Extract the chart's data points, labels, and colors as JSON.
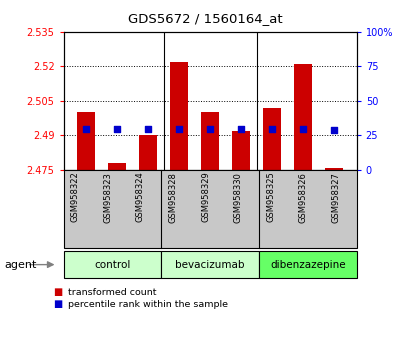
{
  "title": "GDS5672 / 1560164_at",
  "samples": [
    "GSM958322",
    "GSM958323",
    "GSM958324",
    "GSM958328",
    "GSM958329",
    "GSM958330",
    "GSM958325",
    "GSM958326",
    "GSM958327"
  ],
  "red_values": [
    2.5,
    2.478,
    2.49,
    2.522,
    2.5,
    2.492,
    2.502,
    2.521,
    2.476
  ],
  "blue_values": [
    30,
    30,
    30,
    30,
    30,
    30,
    30,
    30,
    29
  ],
  "bar_bottom": 2.475,
  "ylim_left": [
    2.475,
    2.535
  ],
  "ylim_right": [
    0,
    100
  ],
  "yticks_left": [
    2.475,
    2.49,
    2.505,
    2.52,
    2.535
  ],
  "yticks_right": [
    0,
    25,
    50,
    75,
    100
  ],
  "ytick_labels_left": [
    "2.475",
    "2.49",
    "2.505",
    "2.52",
    "2.535"
  ],
  "ytick_labels_right": [
    "0",
    "25",
    "50",
    "75",
    "100%"
  ],
  "groups": [
    {
      "label": "control",
      "indices": [
        0,
        1,
        2
      ],
      "color": "#ccffcc"
    },
    {
      "label": "bevacizumab",
      "indices": [
        3,
        4,
        5
      ],
      "color": "#ccffcc"
    },
    {
      "label": "dibenzazepine",
      "indices": [
        6,
        7,
        8
      ],
      "color": "#66ff66"
    }
  ],
  "bar_color": "#cc0000",
  "blue_color": "#0000cc",
  "bar_width": 0.6,
  "agent_label": "agent",
  "legend_red": "transformed count",
  "legend_blue": "percentile rank within the sample",
  "plot_bg": "#ffffff",
  "tick_bg": "#c8c8c8"
}
